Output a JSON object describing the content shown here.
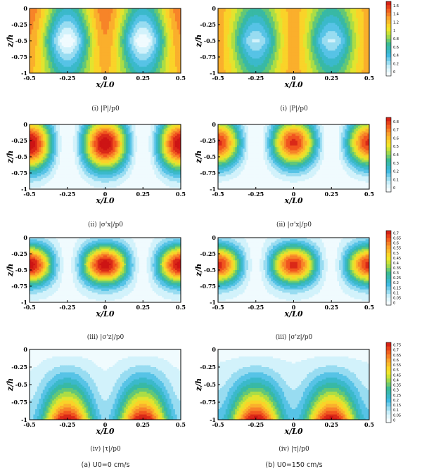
{
  "figure": {
    "subfigure_captions": [
      "(a) U0=0 cm/s",
      "(b) U0=150 cm/s"
    ],
    "row_captions": [
      "(i) |P|/p0",
      "(ii) |σ'x|/p0",
      "(iii) |σ'z|/p0",
      "(iv) |τ|/p0"
    ]
  },
  "chart_data": [
    {
      "type": "heatmap",
      "variable": "|P|/p0",
      "case": "U0=0 cm/s",
      "xlabel": "x/L0",
      "ylabel": "z/h",
      "xlim": [
        -0.5,
        0.5
      ],
      "ylim": [
        -1,
        0
      ],
      "x_ticks": [
        "-0.5",
        "-0.25",
        "0",
        "0.25",
        "0.5"
      ],
      "y_ticks": [
        "0",
        "-0.25",
        "-0.5",
        "-0.75",
        "-1"
      ],
      "min_at_x": [
        -0.25,
        0.25
      ],
      "max_at_x": [
        -0.5,
        0,
        0.5
      ]
    },
    {
      "type": "heatmap",
      "variable": "|P|/p0",
      "case": "U0=150 cm/s",
      "xlabel": "x/L0",
      "ylabel": "z/h",
      "xlim": [
        -0.5,
        0.5
      ],
      "ylim": [
        -1,
        0
      ],
      "x_ticks": [
        "-0.5",
        "-0.25",
        "0",
        "0.25",
        "0.5"
      ],
      "y_ticks": [
        "0",
        "-0.25",
        "-0.5",
        "-0.75",
        "-1"
      ],
      "colorbar": {
        "ticks": [
          "1.6",
          "1.4",
          "1.2",
          "1",
          "0.8",
          "0.6",
          "0.4",
          "0.2",
          "0"
        ],
        "range": [
          0,
          1.7
        ]
      }
    },
    {
      "type": "heatmap",
      "variable": "|σ'x|/p0",
      "case": "U0=0 cm/s",
      "xlabel": "x/L0",
      "ylabel": "z/h",
      "xlim": [
        -0.5,
        0.5
      ],
      "ylim": [
        -1,
        0
      ],
      "x_ticks": [
        "-0.5",
        "-0.25",
        "0",
        "0.25",
        "0.5"
      ],
      "y_ticks": [
        "0",
        "-0.25",
        "-0.5",
        "-0.75",
        "-1"
      ]
    },
    {
      "type": "heatmap",
      "variable": "|σ'x|/p0",
      "case": "U0=150 cm/s",
      "xlabel": "x/L0",
      "ylabel": "z/h",
      "xlim": [
        -0.5,
        0.5
      ],
      "ylim": [
        -1,
        0
      ],
      "x_ticks": [
        "-0.5",
        "-0.25",
        "0",
        "0.25",
        "0.5"
      ],
      "y_ticks": [
        "0",
        "-0.25",
        "-0.5",
        "-0.75",
        "-1"
      ],
      "colorbar": {
        "ticks": [
          "0.8",
          "0.7",
          "0.6",
          "0.5",
          "0.4",
          "0.3",
          "0.2",
          "0.1",
          "0"
        ],
        "range": [
          0,
          0.85
        ]
      }
    },
    {
      "type": "heatmap",
      "variable": "|σ'z|/p0",
      "case": "U0=0 cm/s",
      "xlabel": "x/L0",
      "ylabel": "z/h",
      "xlim": [
        -0.5,
        0.5
      ],
      "ylim": [
        -1,
        0
      ],
      "x_ticks": [
        "-0.5",
        "-0.25",
        "0",
        "0.25",
        "0.5"
      ],
      "y_ticks": [
        "0",
        "-0.25",
        "-0.5",
        "-0.75",
        "-1"
      ]
    },
    {
      "type": "heatmap",
      "variable": "|σ'z|/p0",
      "case": "U0=150 cm/s",
      "xlabel": "x/L0",
      "ylabel": "z/h",
      "xlim": [
        -0.5,
        0.5
      ],
      "ylim": [
        -1,
        0
      ],
      "x_ticks": [
        "-0.5",
        "-0.25",
        "0",
        "0.25",
        "0.5"
      ],
      "y_ticks": [
        "0",
        "-0.25",
        "-0.5",
        "-0.75",
        "-1"
      ],
      "colorbar": {
        "ticks": [
          "0.7",
          "0.65",
          "0.6",
          "0.55",
          "0.5",
          "0.45",
          "0.4",
          "0.35",
          "0.3",
          "0.25",
          "0.2",
          "0.15",
          "0.1",
          "0.05",
          "0"
        ],
        "range": [
          0,
          0.72
        ]
      }
    },
    {
      "type": "heatmap",
      "variable": "|τ|/p0",
      "case": "U0=0 cm/s",
      "xlabel": "x/L0",
      "ylabel": "z/h",
      "xlim": [
        -0.5,
        0.5
      ],
      "ylim": [
        -1,
        0
      ],
      "x_ticks": [
        "-0.5",
        "-0.25",
        "0",
        "0.25",
        "0.5"
      ],
      "y_ticks": [
        "0",
        "-0.25",
        "-0.5",
        "-0.75",
        "-1"
      ]
    },
    {
      "type": "heatmap",
      "variable": "|τ|/p0",
      "case": "U0=150 cm/s",
      "xlabel": "x/L0",
      "ylabel": "z/h",
      "xlim": [
        -0.5,
        0.5
      ],
      "ylim": [
        -1,
        0
      ],
      "x_ticks": [
        "-0.5",
        "-0.25",
        "0",
        "0.25",
        "0.5"
      ],
      "y_ticks": [
        "0",
        "-0.25",
        "-0.5",
        "-0.75",
        "-1"
      ],
      "colorbar": {
        "ticks": [
          "0.75",
          "0.7",
          "0.65",
          "0.6",
          "0.55",
          "0.5",
          "0.45",
          "0.4",
          "0.35",
          "0.3",
          "0.25",
          "0.2",
          "0.15",
          "0.1",
          "0.05",
          "0"
        ],
        "range": [
          0,
          0.78
        ]
      }
    }
  ],
  "colors": {
    "low": "#ffffff",
    "mid": "#2aa8d8",
    "high": "#d81a1a",
    "line": "#000000"
  }
}
